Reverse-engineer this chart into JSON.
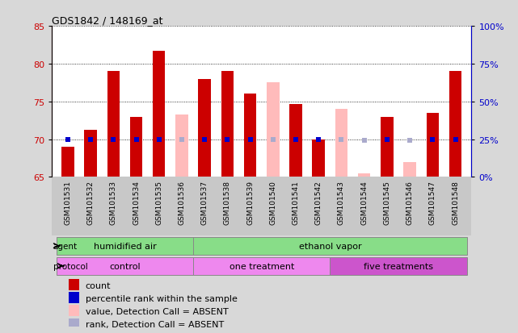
{
  "title": "GDS1842 / 148169_at",
  "samples": [
    "GSM101531",
    "GSM101532",
    "GSM101533",
    "GSM101534",
    "GSM101535",
    "GSM101536",
    "GSM101537",
    "GSM101538",
    "GSM101539",
    "GSM101540",
    "GSM101541",
    "GSM101542",
    "GSM101543",
    "GSM101544",
    "GSM101545",
    "GSM101546",
    "GSM101547",
    "GSM101548"
  ],
  "count_values": [
    69.0,
    71.2,
    79.0,
    73.0,
    81.7,
    null,
    78.0,
    79.0,
    76.0,
    null,
    74.7,
    70.0,
    null,
    null,
    73.0,
    null,
    73.5,
    79.0
  ],
  "count_absent": [
    null,
    null,
    null,
    null,
    null,
    73.3,
    null,
    null,
    null,
    77.5,
    null,
    null,
    74.0,
    65.5,
    null,
    67.0,
    null,
    null
  ],
  "percentile_present": [
    25.0,
    25.0,
    25.0,
    25.0,
    25.0,
    null,
    25.0,
    25.0,
    25.0,
    null,
    25.0,
    25.0,
    null,
    null,
    25.0,
    null,
    25.0,
    25.0
  ],
  "percentile_absent": [
    null,
    null,
    null,
    null,
    null,
    25.0,
    null,
    null,
    null,
    25.0,
    null,
    null,
    25.0,
    24.0,
    null,
    24.5,
    null,
    null
  ],
  "ylim_left": [
    65,
    85
  ],
  "ylim_right": [
    0,
    100
  ],
  "yticks_left": [
    65,
    70,
    75,
    80,
    85
  ],
  "yticks_right": [
    0,
    25,
    50,
    75,
    100
  ],
  "ytick_labels_right": [
    "0%",
    "25%",
    "50%",
    "75%",
    "100%"
  ],
  "bar_width": 0.55,
  "bar_color_red": "#cc0000",
  "bar_color_pink": "#ffbbbb",
  "percentile_color_blue": "#0000cc",
  "percentile_color_lightblue": "#aaaacc",
  "grid_color": "black",
  "bg_color": "#d8d8d8",
  "plot_bg": "white",
  "xlabel_color": "#cc0000",
  "right_axis_color": "#0000cc",
  "agent_color": "#88dd88",
  "protocol_color1": "#ee88ee",
  "protocol_color2": "#cc55cc",
  "legend_items": [
    {
      "label": "count",
      "color": "#cc0000"
    },
    {
      "label": "percentile rank within the sample",
      "color": "#0000cc"
    },
    {
      "label": "value, Detection Call = ABSENT",
      "color": "#ffbbbb"
    },
    {
      "label": "rank, Detection Call = ABSENT",
      "color": "#aaaacc"
    }
  ]
}
